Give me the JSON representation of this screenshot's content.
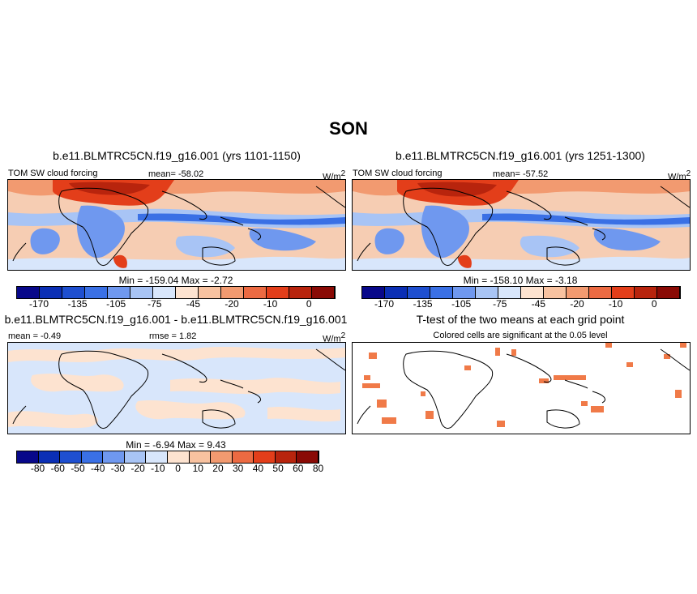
{
  "page": {
    "title": "SON"
  },
  "panels": [
    {
      "title": "b.e11.BLMTRC5CN.f19_g16.001 (yrs 1101-1150)",
      "left_label": "TOM SW cloud forcing",
      "center_label": "mean= -58.02",
      "units": "W/m",
      "units_sup": "2",
      "stats": "Min = -159.04  Max =  -2.72",
      "colorbar": {
        "colors": [
          "#08088a",
          "#0b2fb5",
          "#1e4fd0",
          "#3a70e5",
          "#6f98ef",
          "#a8c4f5",
          "#d8e6fb",
          "#fde3d0",
          "#f8c2a0",
          "#f29a70",
          "#ec6a42",
          "#e33e1a",
          "#b8240d",
          "#8a0a05"
        ],
        "labels": [
          "-170",
          "-135",
          "-105",
          "-75",
          "-45",
          "-20",
          "-10",
          "0"
        ]
      }
    },
    {
      "title": "b.e11.BLMTRC5CN.f19_g16.001 (yrs 1251-1300)",
      "left_label": "TOM SW cloud forcing",
      "center_label": "mean= -57.52",
      "units": "W/m",
      "units_sup": "2",
      "stats": "Min = -158.10  Max =  -3.18",
      "colorbar": {
        "colors": [
          "#08088a",
          "#0b2fb5",
          "#1e4fd0",
          "#3a70e5",
          "#6f98ef",
          "#a8c4f5",
          "#d8e6fb",
          "#fde3d0",
          "#f8c2a0",
          "#f29a70",
          "#ec6a42",
          "#e33e1a",
          "#b8240d",
          "#8a0a05"
        ],
        "labels": [
          "-170",
          "-135",
          "-105",
          "-75",
          "-45",
          "-20",
          "-10",
          "0"
        ]
      }
    },
    {
      "title": "b.e11.BLMTRC5CN.f19_g16.001 - b.e11.BLMTRC5CN.f19_g16.001",
      "left_label": "mean =  -0.49",
      "center_label": "rmse =   1.82",
      "units": "W/m",
      "units_sup": "2",
      "stats": "Min =  -6.94  Max =   9.43",
      "colorbar": {
        "colors": [
          "#08088a",
          "#0b2fb5",
          "#1e4fd0",
          "#3a70e5",
          "#6f98ef",
          "#a8c4f5",
          "#d8e6fb",
          "#fde3d0",
          "#f8c2a0",
          "#f29a70",
          "#ec6a42",
          "#e33e1a",
          "#b8240d",
          "#8a0a05"
        ],
        "labels": [
          "-80",
          "-60",
          "-50",
          "-40",
          "-30",
          "-20",
          "-10",
          "0",
          "10",
          "20",
          "30",
          "40",
          "50",
          "60",
          "80"
        ]
      }
    },
    {
      "title": "T-test of the two means at each grid point",
      "subtitle": "Colored cells are significant at the 0.05 level"
    }
  ],
  "chart_data": [
    {
      "type": "heatmap",
      "title": "b.e11.BLMTRC5CN.f19_g16.001 (yrs 1101-1150)",
      "field": "TOM SW cloud forcing",
      "units": "W/m2",
      "mean": -58.02,
      "min": -159.04,
      "max": -2.72,
      "contour_levels": [
        -170,
        -135,
        -105,
        -75,
        -45,
        -20,
        -10,
        0
      ]
    },
    {
      "type": "heatmap",
      "title": "b.e11.BLMTRC5CN.f19_g16.001 (yrs 1251-1300)",
      "field": "TOM SW cloud forcing",
      "units": "W/m2",
      "mean": -57.52,
      "min": -158.1,
      "max": -3.18,
      "contour_levels": [
        -170,
        -135,
        -105,
        -75,
        -45,
        -20,
        -10,
        0
      ]
    },
    {
      "type": "heatmap",
      "title": "b.e11.BLMTRC5CN.f19_g16.001 - b.e11.BLMTRC5CN.f19_g16.001",
      "units": "W/m2",
      "mean": -0.49,
      "rmse": 1.82,
      "min": -6.94,
      "max": 9.43,
      "contour_levels": [
        -80,
        -60,
        -50,
        -40,
        -30,
        -20,
        -10,
        0,
        10,
        20,
        30,
        40,
        50,
        60,
        80
      ]
    },
    {
      "type": "heatmap",
      "title": "T-test of the two means at each grid point",
      "subtitle": "Colored cells are significant at the 0.05 level",
      "significance_level": 0.05
    }
  ]
}
